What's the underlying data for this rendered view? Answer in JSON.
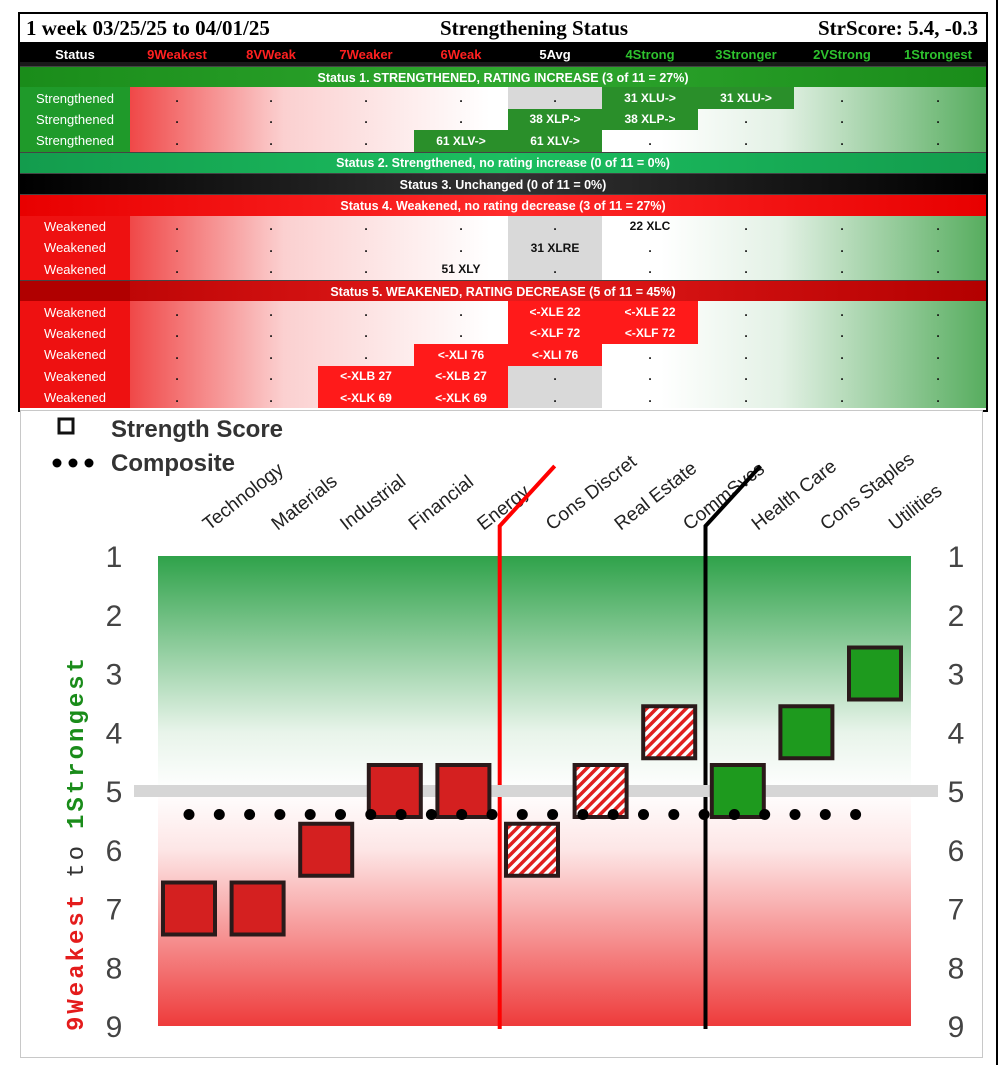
{
  "header": {
    "period": "1 week 03/25/25 to 04/01/25",
    "title": "Strengthening Status",
    "score": "StrScore: 5.4, -0.3"
  },
  "columns": [
    {
      "label": "Status",
      "color": "#ffffff"
    },
    {
      "label": "9Weakest",
      "color": "#ff2020"
    },
    {
      "label": "8VWeak",
      "color": "#ff2020"
    },
    {
      "label": "7Weaker",
      "color": "#ff2020"
    },
    {
      "label": "6Weak",
      "color": "#ff2020"
    },
    {
      "label": "5Avg",
      "color": "#ffffff"
    },
    {
      "label": "4Strong",
      "color": "#2ec22e"
    },
    {
      "label": "3Stronger",
      "color": "#2ec22e"
    },
    {
      "label": "2VStrong",
      "color": "#2ec22e"
    },
    {
      "label": "1Strongest",
      "color": "#2ec22e"
    }
  ],
  "bands": {
    "s1": "Status 1. STRENGTHENED, RATING INCREASE (3 of 11 = 27%)",
    "s2": "Status 2. Strengthened, no rating increase (0 of 11 = 0%)",
    "s3": "Status 3. Unchanged (0 of 11 = 0%)",
    "s4": "Status 4. Weakened, no rating decrease (3 of 11 = 27%)",
    "s5": "Status 5. WEAKENED, RATING DECREASE (5 of 11 = 45%)"
  },
  "rows": [
    {
      "status": "Strengthened",
      "cells": {
        "6": "31 XLU->",
        "7": "31 XLU->"
      },
      "fills": {
        "6": "green",
        "7": "green"
      }
    },
    {
      "status": "Strengthened",
      "cells": {
        "5": "38 XLP->",
        "6": "38 XLP->"
      },
      "fills": {
        "5": "green",
        "6": "green"
      }
    },
    {
      "status": "Strengthened",
      "cells": {
        "4": "61 XLV->",
        "5": "61 XLV->"
      },
      "fills": {
        "4": "green",
        "5": "green"
      }
    },
    {
      "status": "Weakened",
      "cells": {
        "6": "22 XLC"
      },
      "fills": {}
    },
    {
      "status": "Weakened",
      "cells": {
        "5": "31 XLRE"
      },
      "fills": {}
    },
    {
      "status": "Weakened",
      "cells": {
        "4": "51 XLY"
      },
      "fills": {}
    },
    {
      "status": "Weakened",
      "cells": {
        "5": "<-XLE 22",
        "6": "<-XLE 22"
      },
      "fills": {
        "5": "red",
        "6": "red"
      }
    },
    {
      "status": "Weakened",
      "cells": {
        "5": "<-XLF 72",
        "6": "<-XLF 72"
      },
      "fills": {
        "5": "red",
        "6": "red"
      }
    },
    {
      "status": "Weakened",
      "cells": {
        "4": "<-XLI 76",
        "5": "<-XLI 76"
      },
      "fills": {
        "4": "red",
        "5": "red"
      }
    },
    {
      "status": "Weakened",
      "cells": {
        "3": "<-XLB 27",
        "4": "<-XLB 27"
      },
      "fills": {
        "3": "red",
        "4": "red"
      }
    },
    {
      "status": "Weakened",
      "cells": {
        "3": "<-XLK 69",
        "4": "<-XLK 69"
      },
      "fills": {
        "3": "red",
        "4": "red"
      }
    }
  ],
  "placeholder": ".",
  "colors": {
    "fill_red": "#ff1a1a",
    "fill_green": "#2a8f2a",
    "avg_grey": "#d9d9d9",
    "marker_red": "#d42020",
    "marker_green": "#1e9a1e",
    "composite": "#000000"
  },
  "legend": {
    "strength_score": "Strength Score",
    "composite": "Composite"
  },
  "y_label": {
    "start": "9Weakest",
    "middle": "to",
    "end": "1Strongest"
  },
  "chart_data": {
    "type": "scatter",
    "categories": [
      "Technology",
      "Materials",
      "Industrial",
      "Financial",
      "Energy",
      "Cons Discret",
      "Real Estate",
      "CommSvcs",
      "Health Care",
      "Cons Staples",
      "Utilities"
    ],
    "series": [
      {
        "name": "Strength Score",
        "values": [
          7,
          7,
          6,
          5,
          5,
          6,
          5,
          4,
          5,
          4,
          3
        ],
        "marker_style": [
          "red",
          "red",
          "red",
          "red",
          "red",
          "hatched",
          "hatched",
          "hatched",
          "green",
          "green",
          "green"
        ]
      },
      {
        "name": "Composite",
        "values": [
          5.4,
          5.4,
          5.4,
          5.4,
          5.4,
          5.4,
          5.4,
          5.4,
          5.4,
          5.4,
          5.4
        ]
      }
    ],
    "average_line": 5,
    "ylim": [
      9,
      1
    ],
    "y_ticks": [
      1,
      2,
      3,
      4,
      5,
      6,
      7,
      8,
      9
    ],
    "dividers_after": [
      "Energy",
      "CommSvcs"
    ],
    "divider_colors": [
      "#ff0000",
      "#000000"
    ]
  }
}
